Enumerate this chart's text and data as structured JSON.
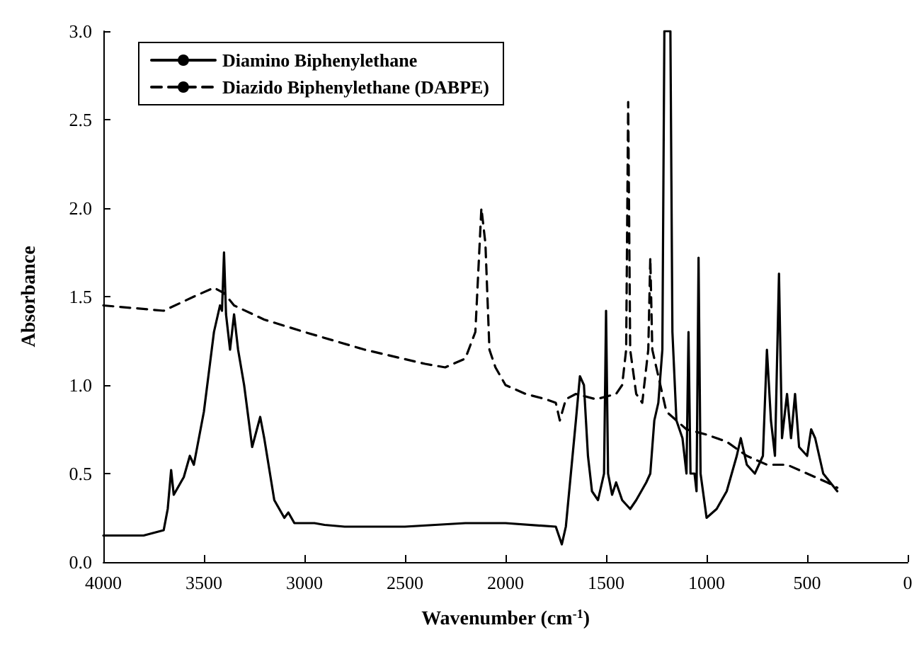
{
  "chart_data": {
    "type": "line",
    "xlabel": "Wavenumber (cm$^{-1}$)",
    "ylabel": "Absorbance",
    "xlim": [
      4000,
      0
    ],
    "xticks": [
      4000,
      3500,
      3000,
      2500,
      2000,
      1500,
      1000,
      500,
      0
    ],
    "ylim": [
      0,
      3
    ],
    "yticks": [
      {
        "value": 0,
        "label": "0.0"
      },
      {
        "value": 0.5,
        "label": "0.5"
      },
      {
        "value": 1,
        "label": "1.0"
      },
      {
        "value": 1.5,
        "label": "1.5"
      },
      {
        "value": 2,
        "label": "2.0"
      },
      {
        "value": 2.5,
        "label": "2.5"
      },
      {
        "value": 3,
        "label": "3.0"
      }
    ],
    "grid": false,
    "legend": "top left",
    "marker": "none",
    "series": [
      {
        "name": "Diamino Biphenylethane",
        "color": "#000000",
        "line_style": "solid",
        "x": [
          4000,
          3800,
          3700,
          3680,
          3663,
          3650,
          3600,
          3570,
          3550,
          3500,
          3450,
          3420,
          3410,
          3400,
          3390,
          3370,
          3350,
          3330,
          3300,
          3260,
          3220,
          3200,
          3150,
          3100,
          3080,
          3050,
          2950,
          2900,
          2800,
          2500,
          2200,
          2000,
          1750,
          1720,
          1700,
          1650,
          1630,
          1610,
          1590,
          1570,
          1540,
          1510,
          1500,
          1490,
          1470,
          1450,
          1420,
          1380,
          1350,
          1300,
          1280,
          1260,
          1240,
          1220,
          1210,
          1180,
          1170,
          1150,
          1120,
          1100,
          1090,
          1080,
          1060,
          1050,
          1040,
          1030,
          1000,
          950,
          900,
          850,
          830,
          800,
          760,
          720,
          700,
          680,
          660,
          640,
          625,
          600,
          580,
          560,
          540,
          500,
          480,
          460,
          420,
          350
        ],
        "values": [
          0.15,
          0.15,
          0.18,
          0.3,
          0.52,
          0.38,
          0.48,
          0.6,
          0.55,
          0.85,
          1.3,
          1.45,
          1.42,
          1.75,
          1.4,
          1.2,
          1.4,
          1.2,
          1.0,
          0.65,
          0.82,
          0.7,
          0.35,
          0.25,
          0.28,
          0.22,
          0.22,
          0.21,
          0.2,
          0.2,
          0.22,
          0.22,
          0.2,
          0.1,
          0.2,
          0.8,
          1.05,
          1.0,
          0.6,
          0.4,
          0.35,
          0.5,
          1.42,
          0.5,
          0.38,
          0.45,
          0.35,
          0.3,
          0.35,
          0.45,
          0.5,
          0.8,
          0.9,
          1.2,
          3.0,
          3.0,
          1.3,
          0.8,
          0.7,
          0.5,
          1.3,
          0.5,
          0.5,
          0.4,
          1.72,
          0.5,
          0.25,
          0.3,
          0.4,
          0.6,
          0.7,
          0.55,
          0.5,
          0.6,
          1.2,
          0.8,
          0.6,
          1.63,
          0.7,
          0.95,
          0.7,
          0.95,
          0.65,
          0.6,
          0.75,
          0.7,
          0.5,
          0.4
        ]
      },
      {
        "name": "Diazido Biphenylethane (DABPE)",
        "color": "#000000",
        "line_style": "dashed",
        "x": [
          4000,
          3700,
          3550,
          3450,
          3400,
          3350,
          3200,
          3000,
          2700,
          2400,
          2300,
          2200,
          2150,
          2120,
          2100,
          2080,
          2050,
          2000,
          1900,
          1800,
          1750,
          1730,
          1700,
          1650,
          1550,
          1450,
          1420,
          1400,
          1390,
          1380,
          1350,
          1320,
          1290,
          1280,
          1270,
          1250,
          1200,
          1100,
          1000,
          900,
          800,
          700,
          600,
          500,
          400,
          350
        ],
        "values": [
          1.45,
          1.42,
          1.5,
          1.55,
          1.52,
          1.45,
          1.37,
          1.3,
          1.2,
          1.12,
          1.1,
          1.15,
          1.3,
          2.0,
          1.8,
          1.2,
          1.1,
          1.0,
          0.95,
          0.92,
          0.9,
          0.8,
          0.92,
          0.95,
          0.92,
          0.95,
          1.0,
          1.2,
          2.6,
          1.2,
          0.95,
          0.9,
          1.2,
          1.72,
          1.2,
          1.1,
          0.85,
          0.75,
          0.72,
          0.68,
          0.6,
          0.55,
          0.55,
          0.5,
          0.45,
          0.42
        ]
      }
    ]
  }
}
